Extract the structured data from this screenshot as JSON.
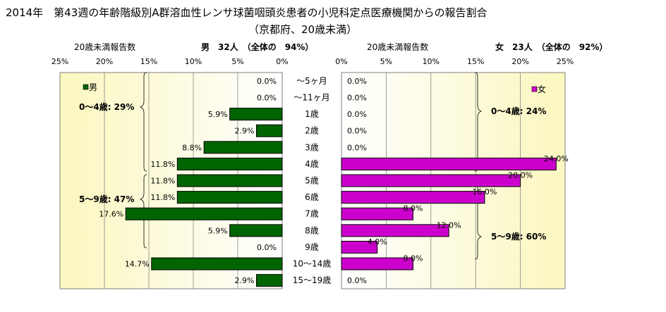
{
  "title_line1": "2014年　第43週の年齢階級別A群溶血性レンサ球菌咽頭炎患者の小児科定点医療機関からの報告割合",
  "title_line2": "（京都府、20歳未満）",
  "chart_data": [
    {
      "type": "bar",
      "orientation": "horizontal",
      "direction": "leftward",
      "panel": "male",
      "axis_caption": "20歳未満報告数",
      "header": "男　32人　（全体の　94%）",
      "legend": "男",
      "xlim": [
        0,
        25
      ],
      "ticks": [
        "25%",
        "20%",
        "15%",
        "10%",
        "5%",
        "0%"
      ],
      "tick_values": [
        25,
        20,
        15,
        10,
        5,
        0
      ],
      "color": "#006400",
      "categories": [
        "～5ヶ月",
        "～11ヶ月",
        "1歳",
        "2歳",
        "3歳",
        "4歳",
        "5歳",
        "6歳",
        "7歳",
        "8歳",
        "9歳",
        "10～14歳",
        "15～19歳"
      ],
      "values": [
        0.0,
        0.0,
        5.9,
        2.9,
        8.8,
        11.8,
        11.8,
        11.8,
        17.6,
        5.9,
        0.0,
        14.7,
        2.9
      ],
      "labels": [
        "0.0%",
        "0.0%",
        "5.9%",
        "2.9%",
        "8.8%",
        "11.8%",
        "11.8%",
        "11.8%",
        "17.6%",
        "5.9%",
        "0.0%",
        "14.7%",
        "2.9%"
      ],
      "group_annotations": [
        "0～4歳: 29%",
        "5～9歳: 47%"
      ]
    },
    {
      "type": "bar",
      "orientation": "horizontal",
      "direction": "rightward",
      "panel": "female",
      "axis_caption": "20歳未満報告数",
      "header": "女　23人　（全体の　92%）",
      "legend": "女",
      "xlim": [
        0,
        25
      ],
      "ticks": [
        "0%",
        "5%",
        "10%",
        "15%",
        "20%",
        "25%"
      ],
      "tick_values": [
        0,
        5,
        10,
        15,
        20,
        25
      ],
      "color": "#cc00cc",
      "categories": [
        "～5ヶ月",
        "～11ヶ月",
        "1歳",
        "2歳",
        "3歳",
        "4歳",
        "5歳",
        "6歳",
        "7歳",
        "8歳",
        "9歳",
        "10～14歳",
        "15～19歳"
      ],
      "values": [
        0.0,
        0.0,
        0.0,
        0.0,
        0.0,
        24.0,
        20.0,
        16.0,
        8.0,
        12.0,
        4.0,
        8.0,
        0.0
      ],
      "labels": [
        "0.0%",
        "0.0%",
        "0.0%",
        "0.0%",
        "0.0%",
        "24.0%",
        "20.0%",
        "16.0%",
        "8.0%",
        "12.0%",
        "4.0%",
        "8.0%",
        "0.0%"
      ],
      "group_annotations": [
        "0～4歳: 24%",
        "5～9歳: 60%"
      ]
    }
  ]
}
